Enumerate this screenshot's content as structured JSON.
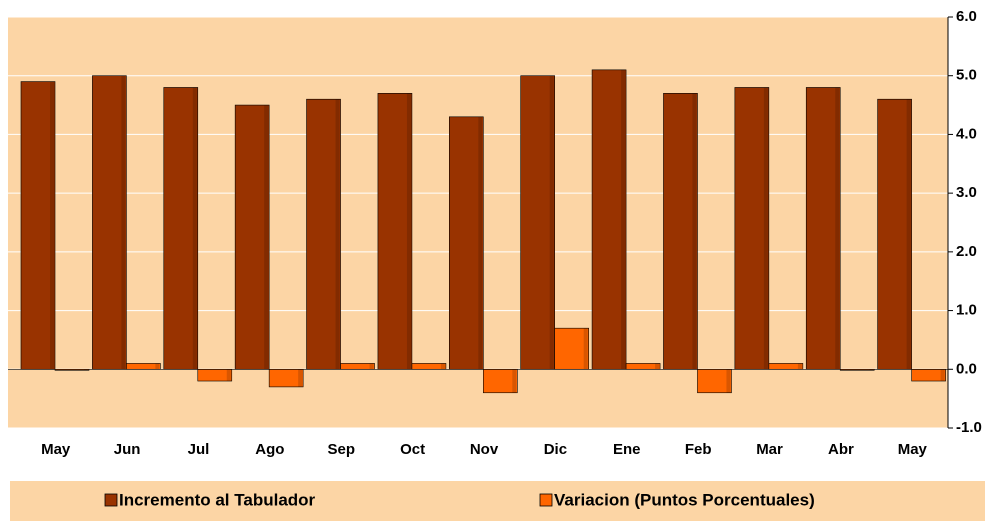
{
  "chart_data": {
    "type": "bar",
    "categories": [
      "May",
      "Jun",
      "Jul",
      "Ago",
      "Sep",
      "Oct",
      "Nov",
      "Dic",
      "Ene",
      "Feb",
      "Mar",
      "Abr",
      "May"
    ],
    "series": [
      {
        "name": "Incremento al Tabulador",
        "color": "#993300",
        "values": [
          4.9,
          5.0,
          4.8,
          4.5,
          4.6,
          4.7,
          4.3,
          5.0,
          5.1,
          4.7,
          4.8,
          4.8,
          4.6
        ]
      },
      {
        "name": "Variacion (Puntos Porcentuales)",
        "color": "#FF6600",
        "values": [
          0.0,
          0.1,
          -0.2,
          -0.3,
          0.1,
          0.1,
          -0.4,
          0.7,
          0.1,
          -0.4,
          0.1,
          0.0,
          -0.2
        ]
      }
    ],
    "ylim": [
      -1,
      6
    ],
    "yticks": [
      {
        "value": -1,
        "label": "-1.0"
      },
      {
        "value": 0,
        "label": "0.0"
      },
      {
        "value": 1,
        "label": "1.0"
      },
      {
        "value": 2,
        "label": "2.0"
      },
      {
        "value": 3,
        "label": "3.0"
      },
      {
        "value": 4,
        "label": "4.0"
      },
      {
        "value": 5,
        "label": "5.0"
      },
      {
        "value": 6,
        "label": "6.0"
      }
    ],
    "grid": true,
    "background": "#FCD5A5",
    "legend": "bottom"
  }
}
